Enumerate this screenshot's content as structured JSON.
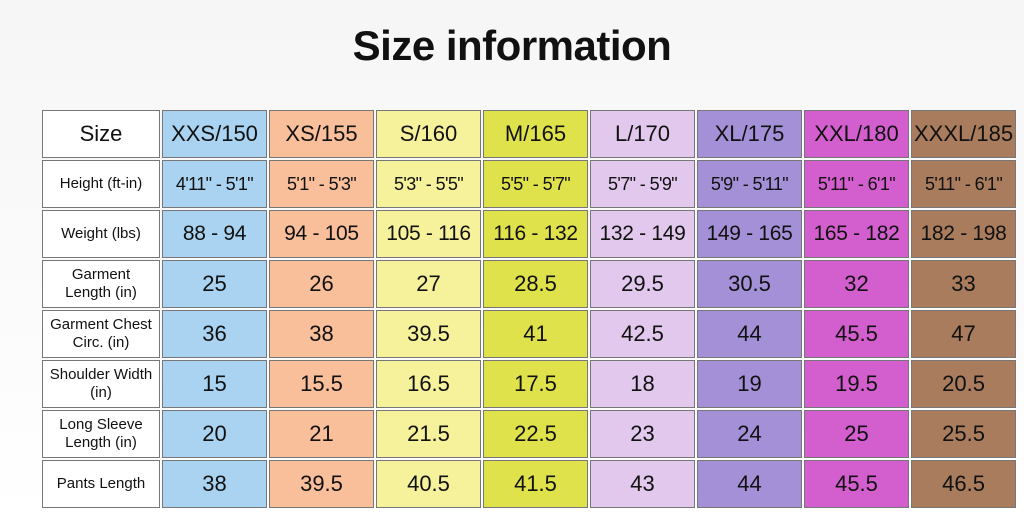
{
  "title": "Size information",
  "table": {
    "header": [
      "Size",
      "XXS/150",
      "XS/155",
      "S/160",
      "M/165",
      "L/170",
      "XL/175",
      "XXL/180",
      "XXXL/185"
    ],
    "rows": [
      [
        "Height (ft-in)",
        "4'11\" - 5'1\"",
        "5'1\" - 5'3\"",
        "5'3\" - 5'5\"",
        "5'5\" - 5'7\"",
        "5'7\" - 5'9\"",
        "5'9\" - 5'11\"",
        "5'11\" - 6'1\"",
        "5'11\" - 6'1\""
      ],
      [
        "Weight (lbs)",
        "88 - 94",
        "94 - 105",
        "105 - 116",
        "116 - 132",
        "132 - 149",
        "149 - 165",
        "165 - 182",
        "182 - 198"
      ],
      [
        "Garment Length (in)",
        "25",
        "26",
        "27",
        "28.5",
        "29.5",
        "30.5",
        "32",
        "33"
      ],
      [
        "Garment Chest Circ. (in)",
        "36",
        "38",
        "39.5",
        "41",
        "42.5",
        "44",
        "45.5",
        "47"
      ],
      [
        "Shoulder Width (in)",
        "15",
        "15.5",
        "16.5",
        "17.5",
        "18",
        "19",
        "19.5",
        "20.5"
      ],
      [
        "Long Sleeve Length (in)",
        "20",
        "21",
        "21.5",
        "22.5",
        "23",
        "24",
        "25",
        "25.5"
      ],
      [
        "Pants Length",
        "38",
        "39.5",
        "40.5",
        "41.5",
        "43",
        "44",
        "45.5",
        "46.5"
      ]
    ]
  }
}
